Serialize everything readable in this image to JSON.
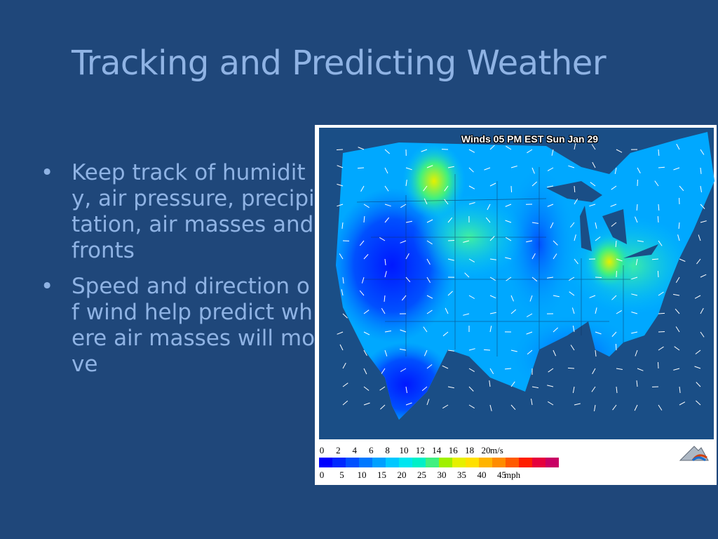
{
  "slide": {
    "title": "Tracking and Predicting Weather",
    "bullets": [
      "Keep track of humidity, air pressure, precipitation, air masses and fronts",
      "Speed and direction of wind help predict where air masses will move"
    ],
    "bullet_glyph": "•"
  },
  "map": {
    "title": "Winds 05 PM EST Sun Jan 29",
    "legend": {
      "ms_ticks": [
        "0",
        "2",
        "4",
        "6",
        "8",
        "10",
        "12",
        "14",
        "16",
        "18",
        "20"
      ],
      "ms_unit": "m/s",
      "mph_ticks": [
        "0",
        "5",
        "10",
        "15",
        "20",
        "25",
        "30",
        "35",
        "40",
        "45"
      ],
      "mph_unit": "mph",
      "colors": [
        "#0000ff",
        "#0028ff",
        "#0050ff",
        "#0078ff",
        "#00a0ff",
        "#00c8ff",
        "#00e6f0",
        "#00f0c8",
        "#40f080",
        "#a0f000",
        "#e6f000",
        "#ffe000",
        "#ffb400",
        "#ff8c00",
        "#ff5a00",
        "#ff1e00",
        "#e6003c",
        "#c80064"
      ]
    }
  }
}
